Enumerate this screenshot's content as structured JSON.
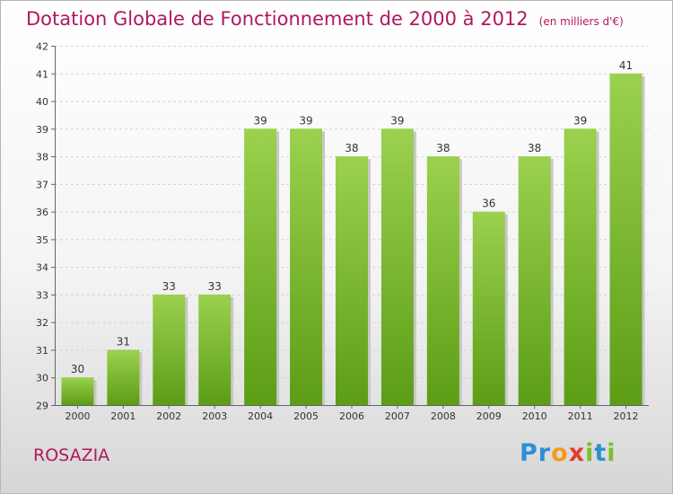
{
  "header": {
    "title": "Dotation Globale de Fonctionnement de 2000 à 2012",
    "subtitle": "(en milliers d'€)"
  },
  "footer": {
    "commune": "ROSAZIA",
    "logo_text": "Proxiti"
  },
  "colors": {
    "title": "#b0185e",
    "bar_top": "#9bd14e",
    "bar_bottom": "#5c9d16",
    "logo_letters": [
      "#2a8fd6",
      "#2a8fd6",
      "#f39a1c",
      "#e53b2a",
      "#7bbf2a",
      "#2a8fd6",
      "#7bbf2a"
    ]
  },
  "chart_data": {
    "type": "bar",
    "categories": [
      "2000",
      "2001",
      "2002",
      "2003",
      "2004",
      "2005",
      "2006",
      "2007",
      "2008",
      "2009",
      "2010",
      "2011",
      "2012"
    ],
    "values": [
      30,
      31,
      33,
      33,
      39,
      39,
      38,
      39,
      38,
      36,
      38,
      39,
      41
    ],
    "data_labels": [
      "30",
      "31",
      "33",
      "33",
      "39",
      "39",
      "38",
      "39",
      "38",
      "36",
      "38",
      "39",
      "41"
    ],
    "title": "Dotation Globale de Fonctionnement de 2000 à 2012",
    "xlabel": "",
    "ylabel": "",
    "ylim": [
      29,
      42
    ],
    "yticks": [
      29,
      30,
      31,
      32,
      33,
      34,
      35,
      36,
      37,
      38,
      39,
      40,
      41,
      42
    ],
    "grid": true,
    "legend": "none"
  }
}
